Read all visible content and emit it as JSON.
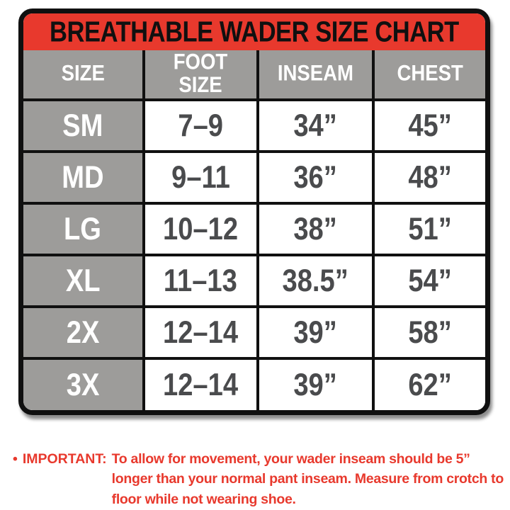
{
  "title": "BREATHABLE WADER SIZE CHART",
  "colors": {
    "header_red": "#e8392d",
    "cell_gray": "#9d9c9a",
    "border_black": "#101010",
    "value_text": "#4a4b4d",
    "note_red": "#e8392d"
  },
  "chart_data": {
    "type": "table",
    "title": "BREATHABLE WADER SIZE CHART",
    "columns": [
      "SIZE",
      "FOOT SIZE",
      "INSEAM",
      "CHEST"
    ],
    "rows": [
      [
        "SM",
        "7–9",
        "34”",
        "45”"
      ],
      [
        "MD",
        "9–11",
        "36”",
        "48”"
      ],
      [
        "LG",
        "10–12",
        "38”",
        "51”"
      ],
      [
        "XL",
        "11–13",
        "38.5”",
        "54”"
      ],
      [
        "2X",
        "12–14",
        "39”",
        "58”"
      ],
      [
        "3X",
        "12–14",
        "39”",
        "62”"
      ]
    ],
    "note": "IMPORTANT: To allow for movement, your wader inseam should be 5” longer than your normal pant inseam. Measure from crotch to floor while not wearing shoe."
  },
  "note": {
    "bullet": "•",
    "label": "IMPORTANT:",
    "lines": {
      "0": "To allow for movement, your wader inseam should be 5”",
      "1": "longer than your normal pant inseam. Measure from crotch to",
      "2": "floor while not wearing shoe."
    }
  }
}
